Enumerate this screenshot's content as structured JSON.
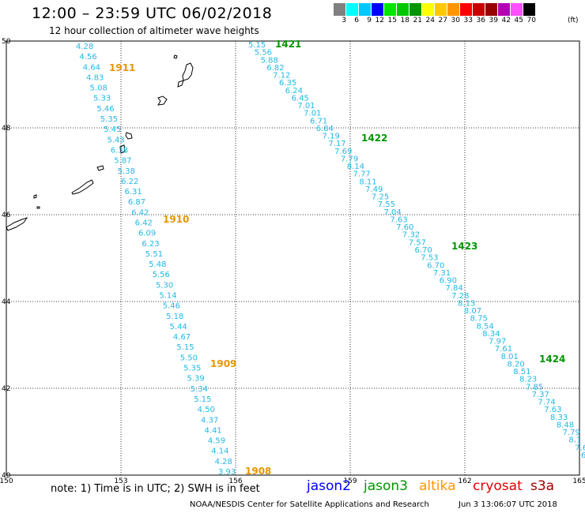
{
  "header": {
    "title": "12:00 – 23:59 UTC 06/02/2018",
    "subtitle": "12 hour collection of altimeter wave heights"
  },
  "colorbar": {
    "colors": [
      "#808080",
      "#00ffff",
      "#00c8ff",
      "#0000ff",
      "#00e600",
      "#00c800",
      "#009600",
      "#ffff00",
      "#ffc800",
      "#ff9600",
      "#ff0000",
      "#c80000",
      "#960000",
      "#b400b4",
      "#ff50ff",
      "#000000"
    ],
    "labels": [
      "",
      "3",
      "6",
      "9",
      "12",
      "15",
      "18",
      "21",
      "24",
      "27",
      "30",
      "33",
      "36",
      "39",
      "42",
      "45",
      "70"
    ],
    "unit": "(ft)"
  },
  "axes": {
    "lon_ticks": [
      "150",
      "153",
      "156",
      "159",
      "162",
      "165"
    ],
    "lat_ticks": [
      "50",
      "48",
      "46",
      "44",
      "42",
      "40"
    ],
    "lon_range": [
      150,
      165
    ],
    "lat_range": [
      40,
      50
    ]
  },
  "passes": [
    {
      "id": "1911",
      "color": "#e69600"
    },
    {
      "id": "1910",
      "color": "#e69600"
    },
    {
      "id": "1909",
      "color": "#e69600"
    },
    {
      "id": "1908",
      "color": "#e69600"
    },
    {
      "id": "1421",
      "color": "#009600"
    },
    {
      "id": "1422",
      "color": "#009600"
    },
    {
      "id": "1423",
      "color": "#009600"
    },
    {
      "id": "1424",
      "color": "#009600"
    }
  ],
  "track_values": {
    "altika": [
      "4.28",
      "4.56",
      "4.64",
      "4.83",
      "5.08",
      "5.33",
      "5.46",
      "5.35",
      "5.45",
      "5.43",
      "6.38",
      "5.87",
      "5.38",
      "6.22",
      "6.31",
      "6.87",
      "6.42",
      "6.42",
      "6.09",
      "6.23",
      "5.51",
      "5.48",
      "5.56",
      "5.30",
      "5.14",
      "5.46",
      "5.18",
      "5.44",
      "4.67",
      "5.15",
      "5.50",
      "5.35",
      "5.39",
      "5.34",
      "5.15",
      "4.50",
      "4.37",
      "4.41",
      "4.59",
      "4.14",
      "4.28",
      "3.93"
    ],
    "jason3": [
      "5.15",
      "5.56",
      "5.88",
      "6.82",
      "7.12",
      "6.35",
      "6.24",
      "6.45",
      "7.01",
      "7.01",
      "6.71",
      "6.84",
      "7.19",
      "7.17",
      "7.69",
      "7.79",
      "8.14",
      "7.77",
      "8.11",
      "7.49",
      "7.25",
      "7.55",
      "7.04",
      "7.63",
      "7.60",
      "7.32",
      "7.57",
      "6.70",
      "7.53",
      "6.70",
      "7.31",
      "6.90",
      "7.84",
      "7.28",
      "8.13",
      "8.07",
      "8.75",
      "8.54",
      "8.34",
      "7.97",
      "7.61",
      "8.01",
      "8.20",
      "8.51",
      "8.23",
      "7.85",
      "7.37",
      "7.74",
      "7.63",
      "8.33",
      "8.48",
      "7.79",
      "8.1",
      "7.6",
      "6"
    ]
  },
  "note": "note: 1) Time is in UTC; 2) SWH is in feet",
  "satellites": [
    {
      "name": "jason2",
      "color": "#0000ff"
    },
    {
      "name": "jason3",
      "color": "#009600"
    },
    {
      "name": "altika",
      "color": "#ff9600"
    },
    {
      "name": "cryosat",
      "color": "#e60000"
    },
    {
      "name": "s3a",
      "color": "#a00000"
    }
  ],
  "footer": {
    "credit": "NOAA/NESDIS Center for Satellite Applications and Research",
    "timestamp": "Jun  3 13:06:07 UTC 2018"
  }
}
